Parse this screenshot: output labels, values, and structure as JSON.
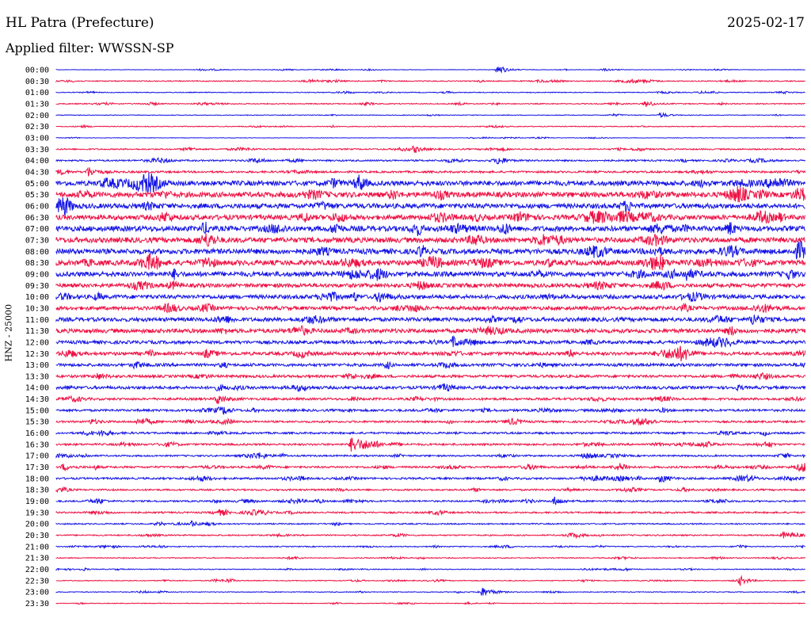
{
  "header": {
    "station": "HL Patra (Prefecture)",
    "date": "2025-02-17",
    "filter": "Applied filter: WWSSN-SP",
    "channel": "HNZ - 25000"
  },
  "colors": {
    "blue": "#1414e6",
    "red": "#ee1144"
  },
  "chart_data": {
    "type": "line",
    "description_type": "helicorder",
    "time_labels": [
      "00:00",
      "00:30",
      "01:00",
      "01:30",
      "02:00",
      "02:30",
      "03:00",
      "03:30",
      "04:00",
      "04:30",
      "05:00",
      "05:30",
      "06:00",
      "06:30",
      "07:00",
      "07:30",
      "08:00",
      "08:30",
      "09:00",
      "09:30",
      "10:00",
      "10:30",
      "11:00",
      "11:30",
      "12:00",
      "12:30",
      "13:00",
      "13:30",
      "14:00",
      "14:30",
      "15:00",
      "15:30",
      "16:00",
      "16:30",
      "17:00",
      "17:30",
      "18:00",
      "18:30",
      "19:00",
      "19:30",
      "20:00",
      "20:30",
      "21:00",
      "21:30",
      "22:00",
      "22:30",
      "23:00",
      "23:30"
    ],
    "row_noise_amplitude": [
      0.3,
      0.6,
      0.5,
      0.6,
      0.4,
      0.5,
      0.3,
      0.8,
      1.0,
      1.2,
      3.0,
      3.2,
      3.0,
      3.0,
      3.2,
      3.2,
      3.2,
      3.2,
      3.0,
      2.4,
      2.5,
      2.2,
      2.4,
      2.5,
      2.0,
      2.0,
      1.8,
      1.6,
      1.8,
      1.4,
      1.4,
      1.2,
      1.2,
      1.2,
      1.0,
      1.2,
      1.2,
      1.0,
      1.0,
      1.0,
      0.8,
      0.8,
      0.6,
      0.6,
      0.5,
      0.5,
      0.5,
      0.4
    ],
    "events": [
      {
        "row": 0,
        "x_fraction": 0.59,
        "amplitude": 6
      },
      {
        "row": 3,
        "x_fraction": 0.787,
        "amplitude": 4
      },
      {
        "row": 4,
        "x_fraction": 0.807,
        "amplitude": 3
      },
      {
        "row": 7,
        "x_fraction": 0.478,
        "amplitude": 4
      },
      {
        "row": 8,
        "x_fraction": 0.59,
        "amplitude": 4
      },
      {
        "row": 9,
        "x_fraction": 0.043,
        "amplitude": 6
      },
      {
        "row": 18,
        "x_fraction": 0.842,
        "amplitude": 6
      },
      {
        "row": 20,
        "x_fraction": 0.43,
        "amplitude": 7
      },
      {
        "row": 22,
        "x_fraction": 0.93,
        "amplitude": 7
      },
      {
        "row": 24,
        "x_fraction": 0.53,
        "amplitude": 7
      },
      {
        "row": 25,
        "x_fraction": 0.2,
        "amplitude": 5
      },
      {
        "row": 29,
        "x_fraction": 0.215,
        "amplitude": 6
      },
      {
        "row": 33,
        "x_fraction": 0.395,
        "amplitude": 10
      },
      {
        "row": 36,
        "x_fraction": 0.807,
        "amplitude": 5
      },
      {
        "row": 38,
        "x_fraction": 0.665,
        "amplitude": 5
      },
      {
        "row": 40,
        "x_fraction": 0.18,
        "amplitude": 4
      },
      {
        "row": 45,
        "x_fraction": 0.913,
        "amplitude": 5
      },
      {
        "row": 46,
        "x_fraction": 0.567,
        "amplitude": 6
      },
      {
        "row": 41,
        "x_fraction": 0.97,
        "amplitude": 4
      },
      {
        "row": 35,
        "x_fraction": 0.01,
        "amplitude": 4
      },
      {
        "row": 35,
        "x_fraction": 0.995,
        "amplitude": 5
      },
      {
        "row": 27,
        "x_fraction": 0.054,
        "amplitude": 4
      },
      {
        "row": 26,
        "x_fraction": 0.105,
        "amplitude": 4
      },
      {
        "row": 31,
        "x_fraction": 0.047,
        "amplitude": 3
      },
      {
        "row": 32,
        "x_fraction": 0.06,
        "amplitude": 4
      },
      {
        "row": 31,
        "x_fraction": 0.11,
        "amplitude": 3
      }
    ]
  }
}
